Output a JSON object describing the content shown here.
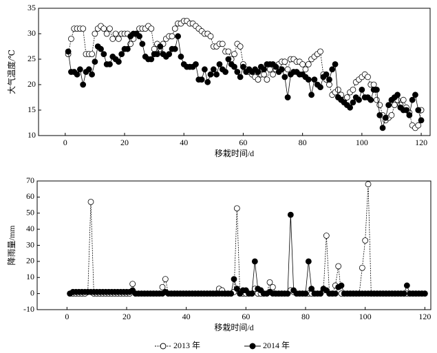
{
  "chart_data": [
    {
      "type": "line",
      "xlabel": "移栽时间/d",
      "ylabel": "大气温度/℃",
      "xlim": [
        -9,
        123
      ],
      "xticks": [
        0,
        20,
        40,
        60,
        80,
        100,
        120
      ],
      "ylim": [
        10,
        35
      ],
      "yticks": [
        10,
        15,
        20,
        25,
        30,
        35
      ],
      "x": [
        1,
        2,
        3,
        4,
        5,
        6,
        7,
        8,
        9,
        10,
        11,
        12,
        13,
        14,
        15,
        16,
        17,
        18,
        19,
        20,
        21,
        22,
        23,
        24,
        25,
        26,
        27,
        28,
        29,
        30,
        31,
        32,
        33,
        34,
        35,
        36,
        37,
        38,
        39,
        40,
        41,
        42,
        43,
        44,
        45,
        46,
        47,
        48,
        49,
        50,
        51,
        52,
        53,
        54,
        55,
        56,
        57,
        58,
        59,
        60,
        61,
        62,
        63,
        64,
        65,
        66,
        67,
        68,
        69,
        70,
        71,
        72,
        73,
        74,
        75,
        76,
        77,
        78,
        79,
        80,
        81,
        82,
        83,
        84,
        85,
        86,
        87,
        88,
        89,
        90,
        91,
        92,
        93,
        94,
        95,
        96,
        97,
        98,
        99,
        100,
        101,
        102,
        103,
        104,
        105,
        106,
        107,
        108,
        109,
        110,
        111,
        112,
        113,
        114,
        115,
        116,
        117,
        118,
        119,
        120
      ],
      "series": [
        {
          "name": "2013 年",
          "color": "#000000",
          "filled": false,
          "values": [
            26,
            29,
            31,
            31,
            31,
            31,
            26,
            26,
            26,
            30,
            31,
            31.5,
            31,
            30,
            31,
            29,
            30,
            29,
            30,
            30,
            30,
            28,
            29,
            30,
            31,
            31,
            31,
            31.5,
            31,
            27,
            28,
            27,
            28,
            29,
            29.5,
            29.5,
            31,
            32,
            32,
            32.5,
            32.5,
            32,
            32,
            31.5,
            31,
            30.5,
            30,
            30,
            29.5,
            27.5,
            27.5,
            28,
            28,
            26.5,
            26.5,
            25,
            26,
            28,
            27.5,
            24,
            23,
            22.5,
            22,
            21.5,
            21,
            22,
            22,
            21,
            23,
            22,
            23,
            24,
            24.5,
            24.5,
            23,
            25,
            25,
            24.5,
            24.5,
            24,
            23,
            24,
            25,
            25.5,
            26,
            26.5,
            22,
            21,
            20,
            18,
            18.5,
            19,
            18,
            17,
            17.5,
            18.5,
            19,
            20.5,
            21,
            21.5,
            22,
            21.5,
            20,
            20,
            17,
            16,
            14,
            13,
            13.5,
            14,
            16,
            17,
            16,
            17,
            15.5,
            14.5,
            12,
            11.5,
            12,
            15
          ]
        },
        {
          "name": "2014 年",
          "color": "#000000",
          "filled": true,
          "values": [
            26.5,
            22.5,
            22.5,
            22,
            23,
            20,
            22.5,
            23,
            22,
            24.5,
            27.5,
            27,
            26,
            24,
            24,
            25.5,
            25,
            24.5,
            26,
            27,
            27,
            29.5,
            30,
            30,
            29.5,
            28,
            25.5,
            25,
            25,
            26,
            26,
            27.5,
            26,
            25.5,
            26,
            27,
            27,
            29.5,
            25.5,
            24,
            23.5,
            23.5,
            23.5,
            24,
            21,
            21,
            23,
            20.5,
            22,
            23,
            22,
            24,
            23,
            22.5,
            25,
            24,
            23.5,
            22.5,
            21.5,
            23.5,
            22.5,
            23,
            22.5,
            23,
            22.5,
            23.5,
            23,
            24,
            24,
            24,
            23.5,
            22.5,
            23,
            21.5,
            17.5,
            22,
            22.5,
            22.5,
            22,
            22,
            21.5,
            21,
            18,
            21,
            20,
            19.5,
            21.5,
            22,
            21,
            23,
            24,
            17.5,
            17,
            16.5,
            16,
            15.5,
            16.5,
            17.5,
            17,
            19,
            17.5,
            17.5,
            17,
            19,
            19,
            14,
            11.5,
            13.5,
            16,
            17,
            17.5,
            18,
            15.5,
            15,
            15,
            14,
            17,
            18,
            15,
            13
          ]
        }
      ]
    },
    {
      "type": "line",
      "xlabel": "移栽时间/d",
      "ylabel": "降雨量/mm",
      "xlim": [
        -10,
        122
      ],
      "xticks": [
        0,
        20,
        40,
        60,
        80,
        100,
        120
      ],
      "ylim": [
        -10,
        70
      ],
      "yticks": [
        -10,
        0,
        10,
        20,
        30,
        40,
        50,
        60,
        70
      ],
      "x": [
        1,
        2,
        3,
        4,
        5,
        6,
        7,
        8,
        9,
        10,
        11,
        12,
        13,
        14,
        15,
        16,
        17,
        18,
        19,
        20,
        21,
        22,
        23,
        24,
        25,
        26,
        27,
        28,
        29,
        30,
        31,
        32,
        33,
        34,
        35,
        36,
        37,
        38,
        39,
        40,
        41,
        42,
        43,
        44,
        45,
        46,
        47,
        48,
        49,
        50,
        51,
        52,
        53,
        54,
        55,
        56,
        57,
        58,
        59,
        60,
        61,
        62,
        63,
        64,
        65,
        66,
        67,
        68,
        69,
        70,
        71,
        72,
        73,
        74,
        75,
        76,
        77,
        78,
        79,
        80,
        81,
        82,
        83,
        84,
        85,
        86,
        87,
        88,
        89,
        90,
        91,
        92,
        93,
        94,
        95,
        96,
        97,
        98,
        99,
        100,
        101,
        102,
        103,
        104,
        105,
        106,
        107,
        108,
        109,
        110,
        111,
        112,
        113,
        114,
        115,
        116,
        117,
        118,
        119,
        120
      ],
      "series": [
        {
          "name": "2013 年",
          "color": "#000000",
          "filled": false,
          "values": [
            0,
            0,
            0,
            0,
            0,
            0,
            1,
            57,
            0,
            0,
            0,
            0,
            0,
            0,
            0,
            0,
            0,
            0,
            0,
            0,
            0,
            6,
            0,
            0,
            0,
            0,
            0,
            0,
            0,
            0,
            0,
            4,
            9,
            0,
            0,
            0,
            0,
            0,
            0,
            0,
            0,
            0,
            0,
            0,
            0,
            0,
            0,
            0,
            0,
            0,
            3,
            2,
            0,
            0,
            0,
            1,
            53,
            0,
            0,
            0,
            0,
            0,
            3,
            0,
            0,
            0,
            0,
            7,
            4,
            0,
            0,
            0,
            0,
            0,
            2,
            1,
            0,
            0,
            0,
            0,
            0,
            0,
            0,
            0,
            0,
            2,
            36,
            0,
            0,
            5,
            17,
            0,
            0,
            0,
            0,
            0,
            0,
            0,
            16,
            33,
            68,
            0,
            0,
            0,
            0,
            0,
            0,
            0,
            0,
            0,
            0,
            0,
            0,
            0,
            0,
            0,
            0,
            0,
            0,
            0
          ]
        },
        {
          "name": "2014 年",
          "color": "#000000",
          "filled": true,
          "values": [
            0,
            1,
            1,
            1,
            1,
            1,
            1,
            1,
            1,
            1,
            1,
            1,
            1,
            1,
            1,
            1,
            1,
            1,
            1,
            1,
            1,
            2,
            0,
            0,
            0,
            0,
            0,
            0,
            0,
            0,
            0,
            0,
            1,
            0,
            0,
            0,
            0,
            0,
            0,
            0,
            0,
            0,
            0,
            0,
            0,
            0,
            0,
            0,
            0,
            0,
            0,
            0,
            0,
            0,
            0,
            9,
            3,
            0,
            2,
            2,
            0,
            0,
            20,
            3,
            2,
            0,
            0,
            1,
            0,
            0,
            0,
            0,
            0,
            0,
            49,
            2,
            0,
            0,
            0,
            0,
            20,
            3,
            0,
            0,
            0,
            3,
            2,
            0,
            0,
            0,
            4,
            5,
            0,
            0,
            0,
            0,
            0,
            0,
            0,
            0,
            0,
            0,
            0,
            0,
            0,
            0,
            0,
            0,
            0,
            0,
            0,
            0,
            0,
            5,
            0,
            0,
            0,
            0,
            0,
            0
          ]
        }
      ]
    }
  ]
}
